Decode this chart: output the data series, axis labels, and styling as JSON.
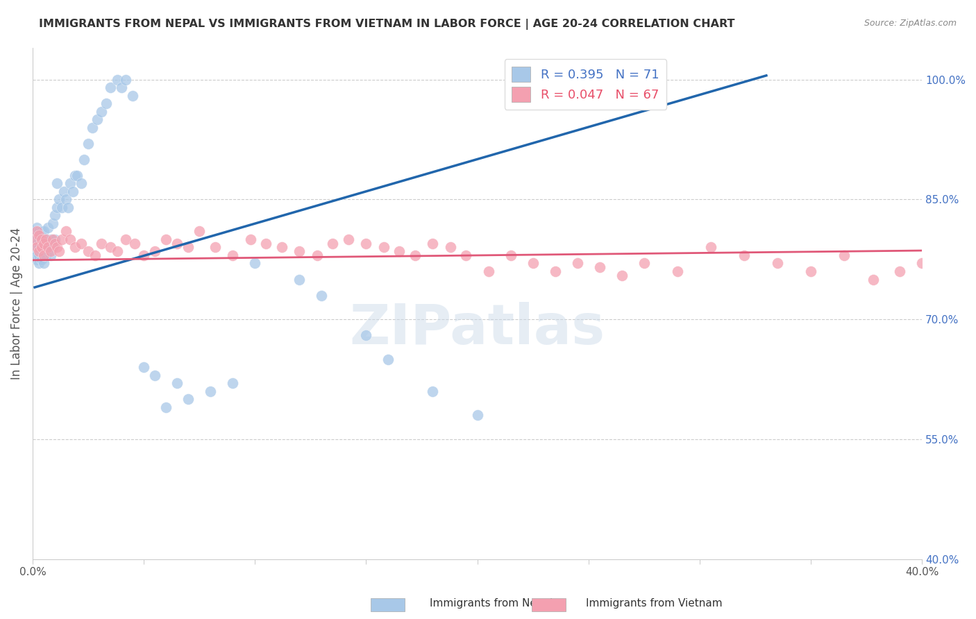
{
  "title": "IMMIGRANTS FROM NEPAL VS IMMIGRANTS FROM VIETNAM IN LABOR FORCE | AGE 20-24 CORRELATION CHART",
  "source": "Source: ZipAtlas.com",
  "ylabel": "In Labor Force | Age 20-24",
  "nepal_color": "#a8c8e8",
  "vietnam_color": "#f4a0b0",
  "nepal_line_color": "#2166ac",
  "vietnam_line_color": "#e05878",
  "background_color": "#ffffff",
  "watermark": "ZIPatlas",
  "xlim": [
    0.0,
    0.4
  ],
  "ylim": [
    0.4,
    1.04
  ],
  "y_ticks_right": [
    1.0,
    0.85,
    0.7,
    0.55,
    0.4
  ],
  "nepal_R": 0.395,
  "nepal_N": 71,
  "vietnam_R": 0.047,
  "vietnam_N": 67,
  "nepal_scatter_x": [
    0.001,
    0.001,
    0.001,
    0.001,
    0.002,
    0.002,
    0.002,
    0.002,
    0.002,
    0.003,
    0.003,
    0.003,
    0.003,
    0.003,
    0.004,
    0.004,
    0.004,
    0.004,
    0.005,
    0.005,
    0.005,
    0.005,
    0.006,
    0.006,
    0.006,
    0.007,
    0.007,
    0.007,
    0.008,
    0.008,
    0.009,
    0.009,
    0.01,
    0.01,
    0.011,
    0.011,
    0.012,
    0.013,
    0.014,
    0.015,
    0.016,
    0.017,
    0.018,
    0.019,
    0.02,
    0.022,
    0.023,
    0.025,
    0.027,
    0.029,
    0.031,
    0.033,
    0.035,
    0.038,
    0.04,
    0.042,
    0.045,
    0.05,
    0.055,
    0.06,
    0.065,
    0.07,
    0.08,
    0.09,
    0.1,
    0.12,
    0.13,
    0.15,
    0.16,
    0.18,
    0.2
  ],
  "nepal_scatter_y": [
    0.785,
    0.79,
    0.8,
    0.81,
    0.775,
    0.78,
    0.795,
    0.805,
    0.815,
    0.77,
    0.78,
    0.79,
    0.8,
    0.81,
    0.775,
    0.785,
    0.795,
    0.81,
    0.77,
    0.78,
    0.795,
    0.81,
    0.78,
    0.79,
    0.8,
    0.785,
    0.795,
    0.815,
    0.78,
    0.8,
    0.79,
    0.82,
    0.8,
    0.83,
    0.84,
    0.87,
    0.85,
    0.84,
    0.86,
    0.85,
    0.84,
    0.87,
    0.86,
    0.88,
    0.88,
    0.87,
    0.9,
    0.92,
    0.94,
    0.95,
    0.96,
    0.97,
    0.99,
    1.0,
    0.99,
    1.0,
    0.98,
    0.64,
    0.63,
    0.59,
    0.62,
    0.6,
    0.61,
    0.62,
    0.77,
    0.75,
    0.73,
    0.68,
    0.65,
    0.61,
    0.58
  ],
  "vietnam_scatter_x": [
    0.001,
    0.002,
    0.002,
    0.003,
    0.003,
    0.004,
    0.004,
    0.005,
    0.005,
    0.006,
    0.007,
    0.008,
    0.009,
    0.01,
    0.011,
    0.012,
    0.013,
    0.015,
    0.017,
    0.019,
    0.022,
    0.025,
    0.028,
    0.031,
    0.035,
    0.038,
    0.042,
    0.046,
    0.05,
    0.055,
    0.06,
    0.065,
    0.07,
    0.075,
    0.082,
    0.09,
    0.098,
    0.105,
    0.112,
    0.12,
    0.128,
    0.135,
    0.142,
    0.15,
    0.158,
    0.165,
    0.172,
    0.18,
    0.188,
    0.195,
    0.205,
    0.215,
    0.225,
    0.235,
    0.245,
    0.255,
    0.265,
    0.275,
    0.29,
    0.305,
    0.32,
    0.335,
    0.35,
    0.365,
    0.378,
    0.39,
    0.4
  ],
  "vietnam_scatter_y": [
    0.8,
    0.81,
    0.79,
    0.805,
    0.785,
    0.8,
    0.79,
    0.78,
    0.795,
    0.8,
    0.79,
    0.785,
    0.8,
    0.795,
    0.79,
    0.785,
    0.8,
    0.81,
    0.8,
    0.79,
    0.795,
    0.785,
    0.78,
    0.795,
    0.79,
    0.785,
    0.8,
    0.795,
    0.78,
    0.785,
    0.8,
    0.795,
    0.79,
    0.81,
    0.79,
    0.78,
    0.8,
    0.795,
    0.79,
    0.785,
    0.78,
    0.795,
    0.8,
    0.795,
    0.79,
    0.785,
    0.78,
    0.795,
    0.79,
    0.78,
    0.76,
    0.78,
    0.77,
    0.76,
    0.77,
    0.765,
    0.755,
    0.77,
    0.76,
    0.79,
    0.78,
    0.77,
    0.76,
    0.78,
    0.75,
    0.76,
    0.77
  ],
  "nepal_line_x": [
    0.001,
    0.33
  ],
  "nepal_line_y": [
    0.74,
    1.005
  ],
  "vietnam_line_x": [
    0.0,
    0.4
  ],
  "vietnam_line_y": [
    0.774,
    0.786
  ]
}
